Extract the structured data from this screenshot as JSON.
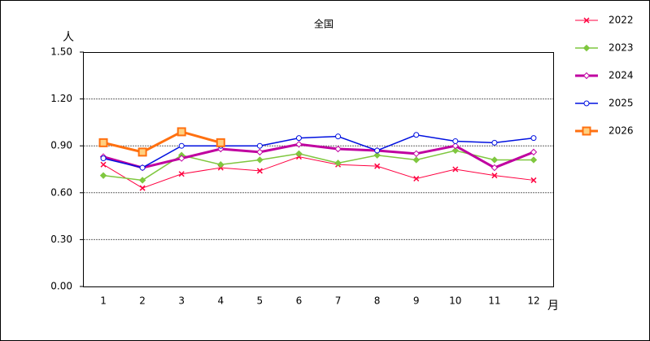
{
  "chart_data": {
    "type": "line",
    "title": "全国",
    "y_label": "人",
    "x_label": "月",
    "categories": [
      "1",
      "2",
      "3",
      "4",
      "5",
      "6",
      "7",
      "8",
      "9",
      "10",
      "11",
      "12"
    ],
    "ylim": [
      0,
      1.5
    ],
    "yticks": [
      {
        "value": 0,
        "label": "0.00"
      },
      {
        "value": 0.3,
        "label": "0.30"
      },
      {
        "value": 0.6,
        "label": "0.60"
      },
      {
        "value": 0.9,
        "label": "0.90"
      },
      {
        "value": 1.2,
        "label": "1.20"
      },
      {
        "value": 1.5,
        "label": "1.50"
      }
    ],
    "grid": true,
    "legend": "right",
    "series": [
      {
        "name": "2022",
        "color": "#ff0040",
        "marker": "x",
        "line_width": 1,
        "values": [
          0.78,
          0.63,
          0.72,
          0.76,
          0.74,
          0.83,
          0.78,
          0.77,
          0.69,
          0.75,
          0.71,
          0.68
        ]
      },
      {
        "name": "2023",
        "color": "#7fc73f",
        "marker": "diamond",
        "line_width": 1.5,
        "values": [
          0.71,
          0.68,
          0.84,
          0.78,
          0.81,
          0.85,
          0.79,
          0.84,
          0.81,
          0.87,
          0.81,
          0.81
        ]
      },
      {
        "name": "2024",
        "color": "#c000a0",
        "marker": "diamond",
        "line_width": 3,
        "values": [
          0.83,
          0.76,
          0.82,
          0.88,
          0.86,
          0.91,
          0.88,
          0.87,
          0.85,
          0.9,
          0.76,
          0.86
        ]
      },
      {
        "name": "2025",
        "color": "#0010e0",
        "marker": "circle",
        "line_width": 1.5,
        "values": [
          0.82,
          0.76,
          0.9,
          0.9,
          0.9,
          0.95,
          0.96,
          0.87,
          0.97,
          0.93,
          0.92,
          0.95
        ]
      },
      {
        "name": "2026",
        "color": "#ff7010",
        "marker": "square",
        "line_width": 3,
        "values": [
          0.92,
          0.86,
          0.99,
          0.92,
          null,
          null,
          null,
          null,
          null,
          null,
          null,
          null
        ]
      }
    ]
  }
}
